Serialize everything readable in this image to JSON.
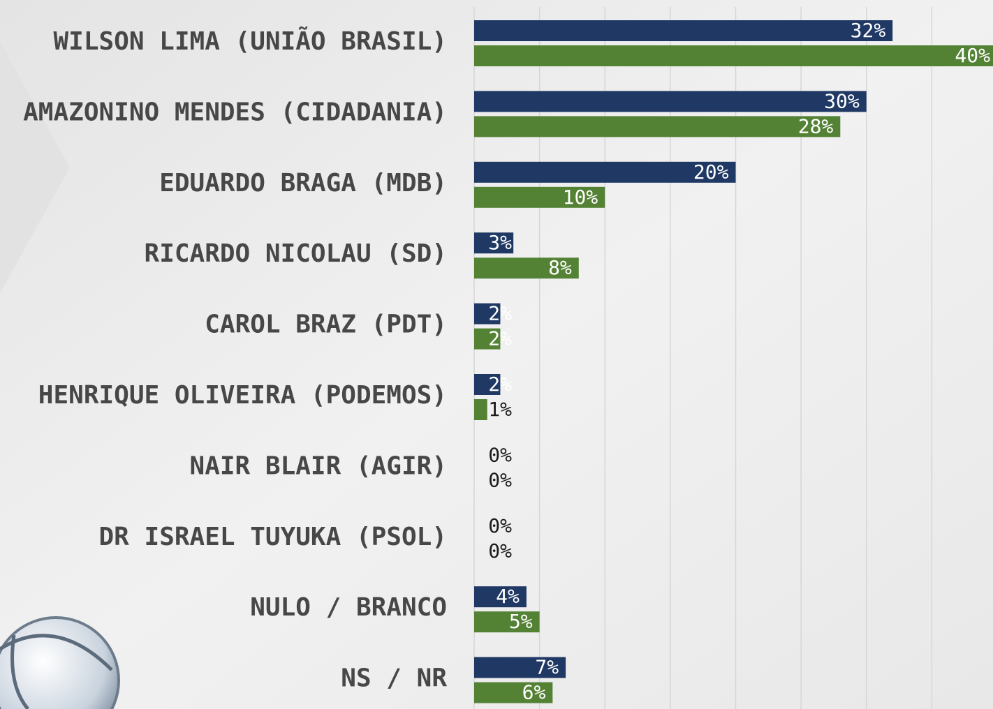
{
  "chart_data": {
    "type": "bar",
    "orientation": "horizontal",
    "categories": [
      "WILSON LIMA (UNIÃO BRASIL)",
      "AMAZONINO MENDES (CIDADANIA)",
      "EDUARDO BRAGA (MDB)",
      "RICARDO NICOLAU (SD)",
      "CAROL BRAZ (PDT)",
      "HENRIQUE OLIVEIRA (PODEMOS)",
      "NAIR BLAIR (AGIR)",
      "DR ISRAEL TUYUKA (PSOL)",
      "NULO / BRANCO",
      "NS / NR"
    ],
    "series": [
      {
        "color": "#1f3864",
        "values": [
          32,
          30,
          20,
          3,
          2,
          2,
          0,
          0,
          4,
          7
        ],
        "value_labels": [
          "32%",
          "30%",
          "20%",
          "3%",
          "2%",
          "2%",
          "0%",
          "0%",
          "4%",
          "7%"
        ]
      },
      {
        "color": "#548235",
        "values": [
          40,
          28,
          10,
          8,
          2,
          1,
          0,
          0,
          5,
          6
        ],
        "value_labels": [
          "40%",
          "28%",
          "10%",
          "8%",
          "2%",
          "1%",
          "0%",
          "0%",
          "5%",
          "6%"
        ]
      }
    ],
    "xlim": [
      0,
      40
    ],
    "xticks": [
      0,
      5,
      10,
      15,
      20,
      25,
      30,
      35,
      40
    ],
    "grid": true
  }
}
